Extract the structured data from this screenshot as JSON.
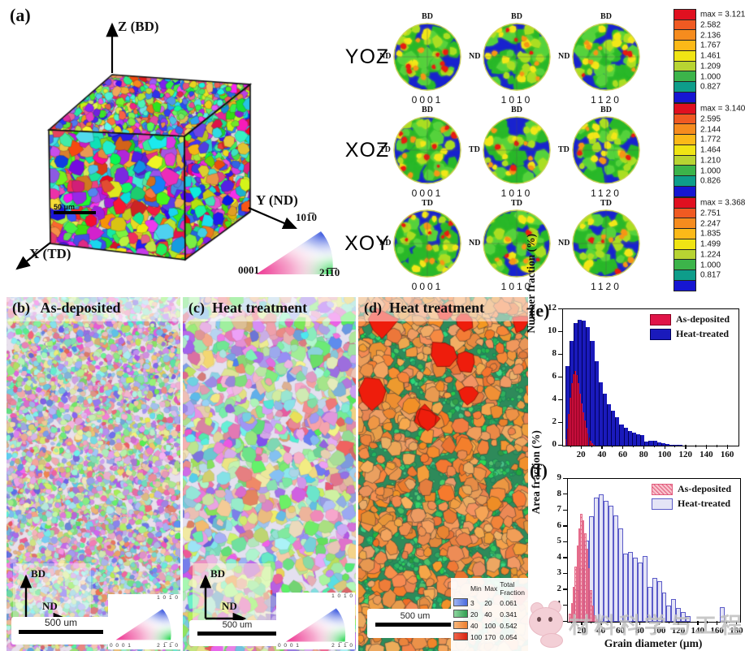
{
  "figure": {
    "panel_a": {
      "label": "(a)",
      "axis_z": "Z (BD)",
      "axis_y": "Y (ND)",
      "axis_x": "X (TD)",
      "scalebar": "50 μm",
      "ipf": {
        "top_right": "101̅0",
        "bottom_left": "0001",
        "bottom_right": "21̅1̅0"
      }
    },
    "pole_figures": {
      "rows": [
        {
          "row_label": "YOZ",
          "pole_top": "BD",
          "pole_side": "ND",
          "cols": [
            "0001",
            "1010",
            "1120"
          ],
          "colorbar": {
            "max_label": "max = 3.121",
            "ticks": [
              "2.582",
              "2.136",
              "1.767",
              "1.461",
              "1.209",
              "1.000",
              "0.827"
            ]
          }
        },
        {
          "row_label": "XOZ",
          "pole_top": "BD",
          "pole_side": "TD",
          "cols": [
            "0001",
            "1010",
            "1120"
          ],
          "colorbar": {
            "max_label": "max = 3.140",
            "ticks": [
              "2.595",
              "2.144",
              "1.772",
              "1.464",
              "1.210",
              "1.000",
              "0.826"
            ]
          }
        },
        {
          "row_label": "XOY",
          "pole_top": "TD",
          "pole_side": "ND",
          "cols": [
            "0001",
            "1010",
            "1120"
          ],
          "colorbar": {
            "max_label": "max = 3.368",
            "ticks": [
              "2.751",
              "2.247",
              "1.835",
              "1.499",
              "1.224",
              "1.000",
              "0.817"
            ]
          }
        }
      ],
      "colorbar_colors": [
        "#e01020",
        "#f05a22",
        "#f68c1e",
        "#fbb918",
        "#f0e414",
        "#b8d432",
        "#3cb44a",
        "#0e9d8a",
        "#1616d2"
      ]
    },
    "panel_b": {
      "label": "(b)",
      "title": "As-deposited",
      "axis_up": "BD",
      "axis_right": "ND",
      "scalebar": "500 um",
      "ipf": {
        "top_right": "1 0 1̅ 0",
        "bottom_left": "0 0 0 1",
        "bottom_right": "2 1̅ 1̅ 0"
      }
    },
    "panel_c": {
      "label": "(c)",
      "title": "Heat treatment",
      "axis_up": "BD",
      "axis_right": "ND",
      "scalebar": "500 um",
      "ipf": {
        "top_right": "1 0 1̅ 0",
        "bottom_left": "0 0 0 1",
        "bottom_right": "2 1̅ 1̅ 0"
      }
    },
    "panel_d": {
      "label": "(d)",
      "title": "Heat treatment",
      "scalebar": "500 um",
      "legend_table": {
        "headers": {
          "min": "Min",
          "max": "Max",
          "fraction_top": "Total",
          "fraction": "Fraction"
        },
        "rows": [
          {
            "color_from": "#9db4f2",
            "color_to": "#4a6ade",
            "min": "3",
            "max": "20",
            "fraction": "0.061"
          },
          {
            "color_from": "#8fd6a0",
            "color_to": "#2f9e4f",
            "min": "20",
            "max": "40",
            "fraction": "0.341"
          },
          {
            "color_from": "#f6b77c",
            "color_to": "#ee7e2e",
            "min": "40",
            "max": "100",
            "fraction": "0.542"
          },
          {
            "color_from": "#f0654a",
            "color_to": "#d92312",
            "min": "100",
            "max": "170",
            "fraction": "0.054"
          }
        ]
      }
    }
  },
  "chart_data": [
    {
      "type": "bar",
      "panel_label": "(e)",
      "title": "",
      "xlabel": "Grain diameter (μm)",
      "ylabel": "Number fraction (%)",
      "xlim": [
        2,
        170
      ],
      "ylim": [
        0,
        12
      ],
      "xticks": [
        20,
        40,
        60,
        80,
        100,
        120,
        140,
        160
      ],
      "yticks": [
        0,
        2,
        4,
        6,
        8,
        10,
        12
      ],
      "xminor_step": 10,
      "grid": false,
      "legend_position": "top-right",
      "legend": [
        "As-deposited",
        "Heat-treated"
      ],
      "series": [
        {
          "name": "Heat-treated",
          "style": "solid",
          "color": "#1a1abc",
          "edge": "#00005a",
          "x_start": 4,
          "bin_width": 4,
          "values": [
            7.0,
            9.2,
            10.8,
            11.1,
            11.0,
            10.45,
            9.2,
            7.4,
            5.6,
            4.6,
            3.65,
            3.05,
            2.5,
            1.85,
            1.6,
            1.3,
            1.15,
            1.0,
            0.9,
            0.35,
            0.45,
            0.4,
            0.3,
            0.18,
            0.12,
            0.1,
            0.08,
            0.07
          ]
        },
        {
          "name": "As-deposited",
          "style": "solid",
          "color": "#e01448",
          "edge": "#8a0020",
          "x_start": 4,
          "bin_width": 1.5,
          "values": [
            0.6,
            1.5,
            2.8,
            4.2,
            5.5,
            6.3,
            6.6,
            6.2,
            5.5,
            4.6,
            3.7,
            2.9,
            2.2,
            1.6,
            1.1,
            0.7,
            0.4,
            0.2,
            0.1
          ]
        }
      ]
    },
    {
      "type": "bar",
      "panel_label": "(f)",
      "title": "",
      "xlabel": "Grain diameter (μm)",
      "ylabel": "Area fraction (%)",
      "xlim": [
        5,
        183
      ],
      "ylim": [
        0,
        9
      ],
      "xticks": [
        20,
        40,
        60,
        80,
        100,
        120,
        140,
        160,
        180
      ],
      "yticks": [
        0,
        1,
        2,
        3,
        4,
        5,
        6,
        7,
        8,
        9
      ],
      "xminor_step": 10,
      "grid": false,
      "legend_position": "top-right",
      "legend": [
        "As-deposited",
        "Heat-treated"
      ],
      "series": [
        {
          "name": "Heat-treated",
          "style": "outlined",
          "color": "#e4e4f6",
          "edge": "#5a5ac8",
          "x_start": 12,
          "bin_width": 5,
          "values": [
            2.0,
            3.4,
            5.1,
            6.65,
            7.85,
            8.05,
            7.6,
            7.3,
            6.7,
            5.9,
            4.3,
            4.4,
            4.05,
            3.75,
            4.15,
            2.2,
            2.75,
            2.55,
            1.85,
            1.0,
            1.45,
            0.85,
            0.6,
            0.35,
            0,
            0,
            0,
            0,
            0,
            0,
            0.9
          ]
        },
        {
          "name": "As-deposited",
          "style": "hatched",
          "color": "#f8c2cc",
          "edge": "#e25c7e",
          "x_start": 6,
          "bin_width": 2,
          "values": [
            0.5,
            1.2,
            2.2,
            3.5,
            4.8,
            5.9,
            6.8,
            6.4,
            5.6,
            4.6,
            3.4,
            2.0,
            1.0,
            0.4,
            0.15
          ]
        }
      ]
    }
  ],
  "watermark": {
    "text": "材料科学与工程"
  }
}
